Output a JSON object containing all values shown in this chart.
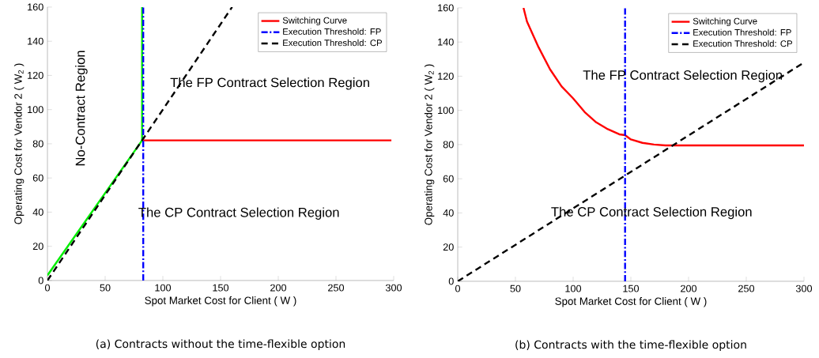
{
  "chart_data": [
    {
      "type": "line",
      "xlabel": "Spot Market Cost for Client ( W )",
      "ylabel": "Operating Cost for Vendor 2 ( W$_{2}$ )",
      "xlim": [
        0,
        300
      ],
      "ylim": [
        0,
        160
      ],
      "xticks": [
        0,
        50,
        100,
        150,
        200,
        250,
        300
      ],
      "yticks": [
        0,
        20,
        40,
        60,
        80,
        100,
        120,
        140,
        160
      ],
      "legend": "top right",
      "series": [
        {
          "color": "#00ee00",
          "x": [
            0,
            82,
            82
          ],
          "values": [
            3,
            82,
            160
          ],
          "line_style": "solid"
        },
        {
          "name": "Switching Curve",
          "color": "#ff0000",
          "x": [
            83,
            298
          ],
          "values": [
            82,
            82
          ],
          "line_style": "solid"
        },
        {
          "name": "Execution Threshold: FP",
          "color": "#0000ff",
          "x": [
            83,
            83
          ],
          "values": [
            0,
            160
          ],
          "line_style": "dashdot"
        },
        {
          "name": "Execution Threshold: CP",
          "color": "#000000",
          "x": [
            0,
            160
          ],
          "values": [
            0,
            160
          ],
          "line_style": "dashed"
        }
      ],
      "annotations": [
        "The FP Contract Selection Region",
        "The CP Contract Selection Region",
        "No-Contract Region",
        "(a) Contracts without the time-flexible option"
      ]
    },
    {
      "type": "line",
      "xlabel": "Spot Market Cost for Client ( W )",
      "ylabel": "Operating Cost for Vendor 2 ( W$_{2}$ )",
      "xlim": [
        0,
        300
      ],
      "ylim": [
        0,
        160
      ],
      "xticks": [
        0,
        50,
        100,
        150,
        200,
        250,
        300
      ],
      "yticks": [
        0,
        20,
        40,
        60,
        80,
        100,
        120,
        140,
        160
      ],
      "legend": "top right",
      "series": [
        {
          "name": "Switching Curve",
          "color": "#ff0000",
          "x": [
            57,
            60,
            70,
            80,
            90,
            100,
            110,
            120,
            130,
            140,
            145,
            150,
            160,
            170,
            180,
            190,
            300
          ],
          "values": [
            160,
            152,
            137,
            124,
            114,
            107,
            99,
            93,
            89,
            86,
            85.5,
            83,
            81,
            80,
            79.5,
            79.5,
            79.5
          ],
          "line_style": "solid"
        },
        {
          "name": "Execution Threshold: FP",
          "color": "#0000ff",
          "x": [
            145,
            145
          ],
          "values": [
            0,
            160
          ],
          "line_style": "dashdot"
        },
        {
          "name": "Execution Threshold: CP",
          "color": "#000000",
          "x": [
            0,
            300
          ],
          "values": [
            0,
            128
          ],
          "line_style": "dashed"
        }
      ],
      "annotations": [
        "The FP Contract Selection Region",
        "The CP Contract Selection Region",
        "(b) Contracts with the time-flexible option"
      ]
    }
  ]
}
